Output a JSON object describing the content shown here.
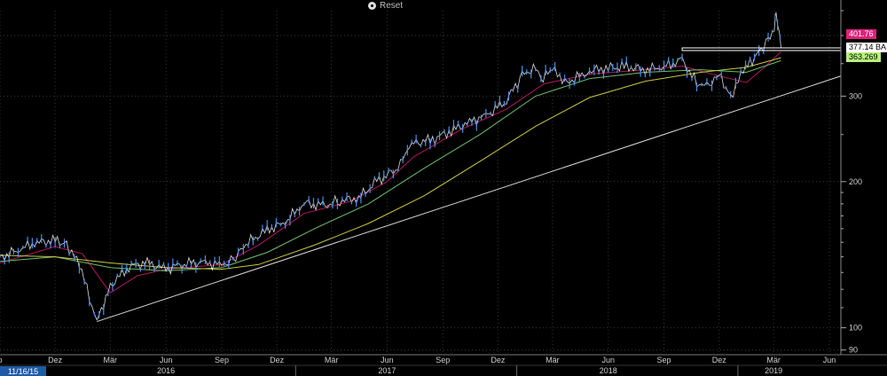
{
  "toolbar": {
    "reset_label": "Reset",
    "reset_icon": "reset-icon"
  },
  "price_tags": [
    {
      "label": "401.76",
      "value": 401.76,
      "bg": "#e0207a",
      "fg": "#ffffff"
    },
    {
      "label": "377.14 BA",
      "value": 377.14,
      "bg": "#ffffff",
      "fg": "#000000"
    },
    {
      "label": "363.269",
      "value": 363.269,
      "bg": "#b6f07a",
      "fg": "#000000"
    }
  ],
  "cursor_date_label": "11/16/15",
  "chart_data": {
    "type": "line",
    "y_scale": "log",
    "ylim": [
      88,
      450
    ],
    "xlim": [
      "2015-09-01",
      "2019-06-20"
    ],
    "y_ticks": [
      90,
      100,
      200,
      300
    ],
    "x_ticks": [
      {
        "label": "p",
        "date": "2015-09-01"
      },
      {
        "label": "Dez",
        "date": "2015-12-01"
      },
      {
        "label": "Mär",
        "date": "2016-03-01"
      },
      {
        "label": "Jun",
        "date": "2016-06-01"
      },
      {
        "label": "Sep",
        "date": "2016-09-01"
      },
      {
        "label": "Dez",
        "date": "2016-12-01"
      },
      {
        "label": "Mär",
        "date": "2017-03-01"
      },
      {
        "label": "Jun",
        "date": "2017-06-01"
      },
      {
        "label": "Sep",
        "date": "2017-09-01"
      },
      {
        "label": "Dez",
        "date": "2017-12-01"
      },
      {
        "label": "Mär",
        "date": "2018-03-01"
      },
      {
        "label": "Jun",
        "date": "2018-06-01"
      },
      {
        "label": "Sep",
        "date": "2018-09-01"
      },
      {
        "label": "Dez",
        "date": "2018-12-01"
      },
      {
        "label": "Mär",
        "date": "2019-03-01"
      },
      {
        "label": "Jun",
        "date": "2019-06-01"
      }
    ],
    "year_labels": [
      {
        "label": "2016",
        "date": "2016-06-01"
      },
      {
        "label": "2017",
        "date": "2017-06-01"
      },
      {
        "label": "2018",
        "date": "2018-06-01"
      },
      {
        "label": "2019",
        "date": "2019-03-01"
      }
    ],
    "year_dividers": [
      "2017-01-01",
      "2018-01-01",
      "2019-01-01"
    ],
    "price": {
      "color": "#4a8fe8",
      "points": [
        [
          "2015-09-01",
          139
        ],
        [
          "2015-10-01",
          145
        ],
        [
          "2015-11-01",
          150
        ],
        [
          "2015-12-01",
          151
        ],
        [
          "2015-12-20",
          149
        ],
        [
          "2016-01-10",
          135
        ],
        [
          "2016-02-08",
          103
        ],
        [
          "2016-03-01",
          122
        ],
        [
          "2016-04-01",
          134
        ],
        [
          "2016-05-01",
          136
        ],
        [
          "2016-06-01",
          132
        ],
        [
          "2016-07-01",
          136
        ],
        [
          "2016-08-01",
          136
        ],
        [
          "2016-09-01",
          135
        ],
        [
          "2016-09-20",
          138
        ],
        [
          "2016-10-15",
          150
        ],
        [
          "2016-11-15",
          159
        ],
        [
          "2016-12-15",
          165
        ],
        [
          "2017-01-15",
          181
        ],
        [
          "2017-02-15",
          178
        ],
        [
          "2017-03-15",
          183
        ],
        [
          "2017-04-15",
          185
        ],
        [
          "2017-05-15",
          200
        ],
        [
          "2017-06-15",
          212
        ],
        [
          "2017-07-01",
          228
        ],
        [
          "2017-07-15",
          240
        ],
        [
          "2017-08-15",
          244
        ],
        [
          "2017-09-15",
          255
        ],
        [
          "2017-10-15",
          265
        ],
        [
          "2017-11-15",
          275
        ],
        [
          "2017-12-15",
          295
        ],
        [
          "2018-01-10",
          330
        ],
        [
          "2018-02-01",
          345
        ],
        [
          "2018-02-10",
          325
        ],
        [
          "2018-03-01",
          340
        ],
        [
          "2018-03-25",
          320
        ],
        [
          "2018-05-01",
          338
        ],
        [
          "2018-06-01",
          343
        ],
        [
          "2018-07-01",
          345
        ],
        [
          "2018-08-01",
          340
        ],
        [
          "2018-09-01",
          345
        ],
        [
          "2018-10-01",
          355
        ],
        [
          "2018-10-25",
          320
        ],
        [
          "2018-11-15",
          312
        ],
        [
          "2018-12-01",
          333
        ],
        [
          "2018-12-20",
          300
        ],
        [
          "2019-01-10",
          338
        ],
        [
          "2019-02-01",
          365
        ],
        [
          "2019-02-20",
          392
        ],
        [
          "2019-03-02",
          420
        ],
        [
          "2019-03-05",
          435
        ],
        [
          "2019-03-10",
          413
        ],
        [
          "2019-03-13",
          378
        ]
      ]
    },
    "moving_averages": [
      {
        "color": "#b0185f",
        "points": [
          [
            "2015-09-01",
            136
          ],
          [
            "2015-12-01",
            147
          ],
          [
            "2016-01-15",
            142
          ],
          [
            "2016-03-01",
            118
          ],
          [
            "2016-04-15",
            128
          ],
          [
            "2016-06-01",
            132
          ],
          [
            "2016-09-01",
            135
          ],
          [
            "2016-11-01",
            148
          ],
          [
            "2017-01-15",
            172
          ],
          [
            "2017-04-01",
            182
          ],
          [
            "2017-06-01",
            200
          ],
          [
            "2017-07-15",
            225
          ],
          [
            "2017-10-01",
            256
          ],
          [
            "2017-12-15",
            282
          ],
          [
            "2018-02-15",
            318
          ],
          [
            "2018-05-01",
            333
          ],
          [
            "2018-08-01",
            340
          ],
          [
            "2018-10-01",
            346
          ],
          [
            "2018-12-01",
            330
          ],
          [
            "2019-01-15",
            320
          ],
          [
            "2019-02-15",
            345
          ],
          [
            "2019-03-13",
            370
          ]
        ]
      },
      {
        "color": "#6dbf6d",
        "points": [
          [
            "2015-09-01",
            137
          ],
          [
            "2015-12-01",
            140
          ],
          [
            "2016-03-01",
            133
          ],
          [
            "2016-06-01",
            131
          ],
          [
            "2016-09-01",
            133
          ],
          [
            "2016-11-15",
            143
          ],
          [
            "2017-02-01",
            160
          ],
          [
            "2017-05-01",
            180
          ],
          [
            "2017-08-01",
            213
          ],
          [
            "2017-11-01",
            250
          ],
          [
            "2018-02-01",
            300
          ],
          [
            "2018-05-01",
            326
          ],
          [
            "2018-08-01",
            336
          ],
          [
            "2018-11-01",
            340
          ],
          [
            "2019-01-15",
            336
          ],
          [
            "2019-03-13",
            355
          ]
        ]
      },
      {
        "color": "#c8c840",
        "points": [
          [
            "2015-09-01",
            141
          ],
          [
            "2015-12-01",
            140
          ],
          [
            "2016-03-01",
            136
          ],
          [
            "2016-06-01",
            133
          ],
          [
            "2016-09-01",
            132
          ],
          [
            "2016-11-01",
            135
          ],
          [
            "2017-02-01",
            148
          ],
          [
            "2017-05-01",
            164
          ],
          [
            "2017-08-01",
            187
          ],
          [
            "2017-11-01",
            220
          ],
          [
            "2018-02-01",
            260
          ],
          [
            "2018-05-01",
            298
          ],
          [
            "2018-08-01",
            322
          ],
          [
            "2018-11-01",
            336
          ],
          [
            "2019-01-15",
            344
          ],
          [
            "2019-03-13",
            360
          ]
        ]
      }
    ],
    "trendline": {
      "color": "#d8d8d8",
      "start": [
        "2016-02-08",
        103
      ],
      "end": [
        "2019-06-20",
        330
      ]
    },
    "level_line": {
      "color": "#ffffff",
      "value": 377.14,
      "start": "2018-10-01",
      "end": "2019-06-20"
    }
  }
}
